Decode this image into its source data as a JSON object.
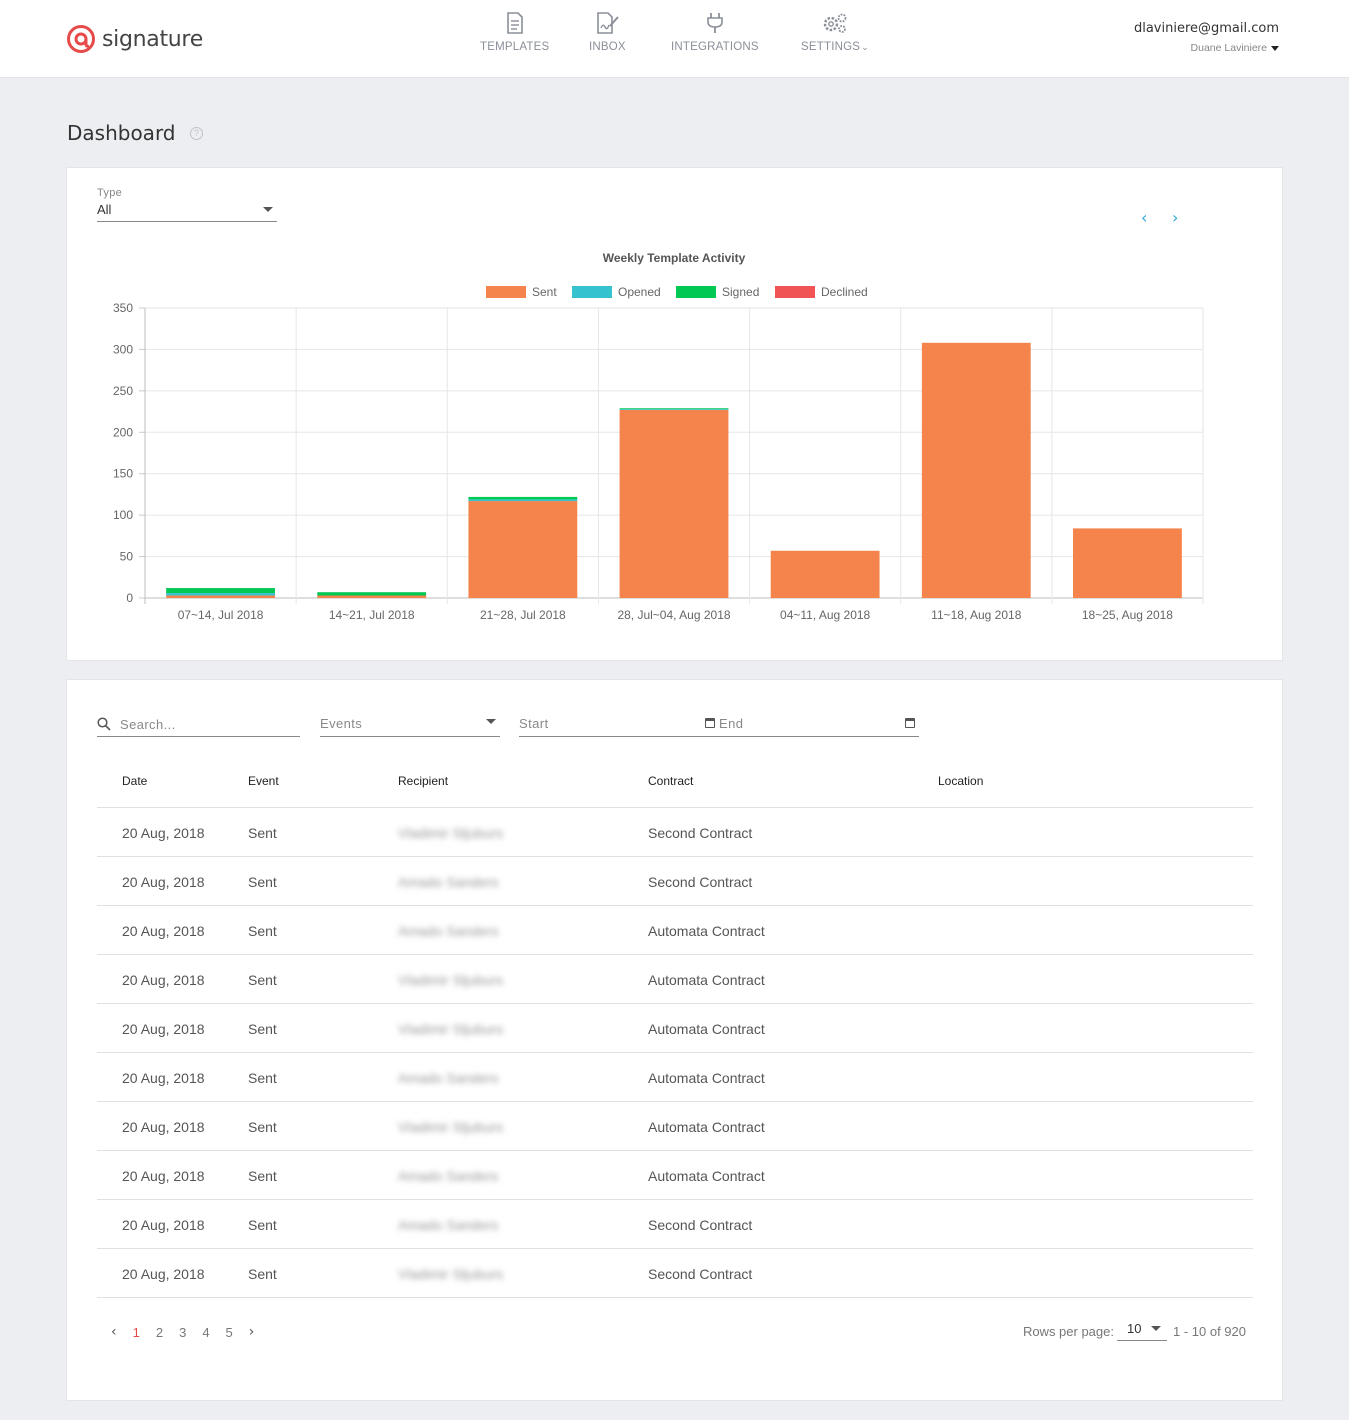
{
  "app": {
    "logo_text": "signature",
    "nav": [
      {
        "label": "TEMPLATES",
        "icon": "document-icon"
      },
      {
        "label": "INBOX",
        "icon": "signed-document-icon"
      },
      {
        "label": "INTEGRATIONS",
        "icon": "plug-icon"
      },
      {
        "label": "SETTINGS",
        "icon": "gears-icon"
      }
    ],
    "account": {
      "email": "dlaviniere@gmail.com",
      "name": "Duane Laviniere"
    }
  },
  "page": {
    "title": "Dashboard",
    "help_icon": "question-circle-icon"
  },
  "chart_panel": {
    "type_label": "Type",
    "type_value": "All",
    "prev_label": "‹",
    "next_label": "›"
  },
  "chart_data": {
    "type": "bar",
    "stacked": true,
    "title": "Weekly Template Activity",
    "categories": [
      "07~14, Jul 2018",
      "14~21, Jul 2018",
      "21~28, Jul 2018",
      "28, Jul~04, Aug 2018",
      "04~11, Aug 2018",
      "11~18, Aug 2018",
      "18~25, Aug 2018"
    ],
    "series": [
      {
        "name": "Sent",
        "color": "#f5844c",
        "values": [
          3,
          3,
          117,
          227,
          57,
          308,
          84
        ]
      },
      {
        "name": "Opened",
        "color": "#36c2cf",
        "values": [
          3,
          0,
          2,
          1,
          0,
          0,
          0
        ]
      },
      {
        "name": "Signed",
        "color": "#00c853",
        "values": [
          6,
          4,
          3,
          1,
          0,
          0,
          0
        ]
      },
      {
        "name": "Declined",
        "color": "#f05454",
        "values": [
          0,
          0,
          0,
          0,
          0,
          0,
          0
        ]
      }
    ],
    "y_ticks": [
      0,
      50,
      100,
      150,
      200,
      250,
      300,
      350
    ],
    "ylim": [
      0,
      350
    ],
    "grid": true,
    "legend_position": "top"
  },
  "filters": {
    "search_placeholder": "Search...",
    "events_label": "Events",
    "start_label": "Start",
    "end_label": "End"
  },
  "table": {
    "columns": [
      "Date",
      "Event",
      "Recipient",
      "Contract",
      "Location"
    ],
    "rows": [
      {
        "date": "20 Aug, 2018",
        "event": "Sent",
        "recipient": "Vladimir Sljuburs",
        "contract": "Second Contract",
        "location": ""
      },
      {
        "date": "20 Aug, 2018",
        "event": "Sent",
        "recipient": "Amado Sanders",
        "contract": "Second Contract",
        "location": ""
      },
      {
        "date": "20 Aug, 2018",
        "event": "Sent",
        "recipient": "Amado Sanders",
        "contract": "Automata Contract",
        "location": ""
      },
      {
        "date": "20 Aug, 2018",
        "event": "Sent",
        "recipient": "Vladimir Sljuburs",
        "contract": "Automata Contract",
        "location": ""
      },
      {
        "date": "20 Aug, 2018",
        "event": "Sent",
        "recipient": "Vladimir Sljuburs",
        "contract": "Automata Contract",
        "location": ""
      },
      {
        "date": "20 Aug, 2018",
        "event": "Sent",
        "recipient": "Amado Sanders",
        "contract": "Automata Contract",
        "location": ""
      },
      {
        "date": "20 Aug, 2018",
        "event": "Sent",
        "recipient": "Vladimir Sljuburs",
        "contract": "Automata Contract",
        "location": ""
      },
      {
        "date": "20 Aug, 2018",
        "event": "Sent",
        "recipient": "Amado Sanders",
        "contract": "Automata Contract",
        "location": ""
      },
      {
        "date": "20 Aug, 2018",
        "event": "Sent",
        "recipient": "Amado Sanders",
        "contract": "Second Contract",
        "location": ""
      },
      {
        "date": "20 Aug, 2018",
        "event": "Sent",
        "recipient": "Vladimir Sljuburs",
        "contract": "Second Contract",
        "location": ""
      }
    ]
  },
  "pagination": {
    "prev": "‹",
    "pages": [
      "1",
      "2",
      "3",
      "4",
      "5"
    ],
    "active_page": "1",
    "next": "›",
    "rows_per_page_label": "Rows per page:",
    "rows_per_page_value": "10",
    "range_text": "1 - 10 of 920"
  }
}
